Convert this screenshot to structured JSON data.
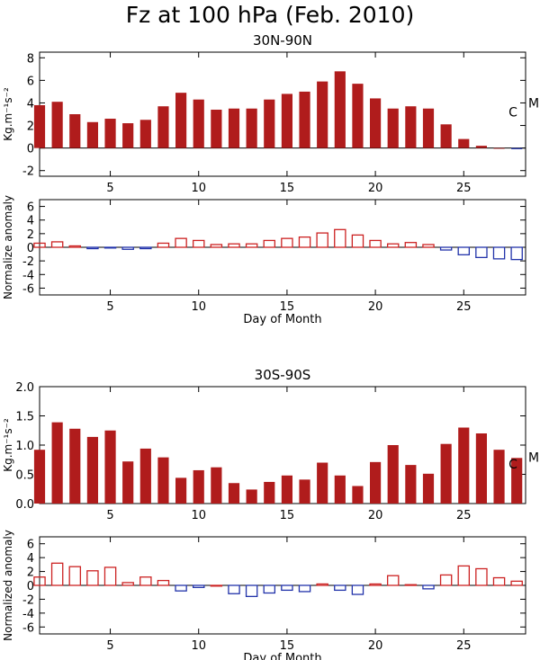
{
  "title": "Fz at 100 hPa (Feb. 2010)",
  "colors": {
    "positive": "#cc2222",
    "negative": "#2233aa",
    "fill": "#b01c1c",
    "axis": "#000000"
  },
  "chart_data": [
    {
      "type": "bar",
      "style": "filled",
      "title": "30N-90N",
      "ylabel": "Kg.m⁻¹s⁻²",
      "xlim": [
        1,
        28.5
      ],
      "ylim": [
        -2.5,
        8.5
      ],
      "xticks": [
        5,
        10,
        15,
        20,
        25
      ],
      "yticks": [
        -2,
        0,
        2,
        4,
        6,
        8
      ],
      "x": [
        1,
        2,
        3,
        4,
        5,
        6,
        7,
        8,
        9,
        10,
        11,
        12,
        13,
        14,
        15,
        16,
        17,
        18,
        19,
        20,
        21,
        22,
        23,
        24,
        25,
        26,
        27,
        28
      ],
      "values": [
        3.8,
        4.1,
        3.0,
        2.3,
        2.6,
        2.2,
        2.5,
        3.7,
        4.9,
        4.3,
        3.4,
        3.5,
        3.5,
        4.3,
        4.8,
        5.0,
        5.9,
        6.8,
        5.7,
        4.4,
        3.5,
        3.7,
        3.5,
        2.1,
        0.8,
        0.2,
        0.0,
        -0.1
      ],
      "markers": [
        {
          "text": "C",
          "value": 3.2
        },
        {
          "text": "M",
          "value": 4.0
        }
      ]
    },
    {
      "type": "bar",
      "style": "outline",
      "title": "",
      "ylabel": "Normalize anomaly",
      "xlabel": "Day of Month",
      "xlim": [
        1,
        28.5
      ],
      "ylim": [
        -7,
        7
      ],
      "xticks": [
        5,
        10,
        15,
        20,
        25
      ],
      "yticks": [
        -6,
        -4,
        -2,
        0,
        2,
        4,
        6
      ],
      "x": [
        1,
        2,
        3,
        4,
        5,
        6,
        7,
        8,
        9,
        10,
        11,
        12,
        13,
        14,
        15,
        16,
        17,
        18,
        19,
        20,
        21,
        22,
        23,
        24,
        25,
        26,
        27,
        28
      ],
      "values": [
        0.6,
        0.8,
        0.2,
        -0.2,
        -0.1,
        -0.3,
        -0.2,
        0.6,
        1.3,
        1.0,
        0.4,
        0.5,
        0.5,
        1.0,
        1.3,
        1.5,
        2.1,
        2.6,
        1.8,
        1.0,
        0.5,
        0.7,
        0.4,
        -0.4,
        -1.1,
        -1.5,
        -1.7,
        -1.8
      ]
    },
    {
      "type": "bar",
      "style": "filled",
      "title": "30S-90S",
      "ylabel": "Kg.m⁻¹s⁻²",
      "xlim": [
        1,
        28.5
      ],
      "ylim": [
        0,
        2.0
      ],
      "xticks": [
        5,
        10,
        15,
        20,
        25
      ],
      "yticks": [
        0.0,
        0.5,
        1.0,
        1.5,
        2.0
      ],
      "yticklabels": [
        "0.0",
        "0.5",
        "1.0",
        "1.5",
        "2.0"
      ],
      "x": [
        1,
        2,
        3,
        4,
        5,
        6,
        7,
        8,
        9,
        10,
        11,
        12,
        13,
        14,
        15,
        16,
        17,
        18,
        19,
        20,
        21,
        22,
        23,
        24,
        25,
        26,
        27,
        28
      ],
      "values": [
        0.92,
        1.39,
        1.28,
        1.14,
        1.25,
        0.72,
        0.94,
        0.79,
        0.44,
        0.57,
        0.62,
        0.35,
        0.24,
        0.37,
        0.48,
        0.41,
        0.7,
        0.48,
        0.3,
        0.71,
        1.0,
        0.66,
        0.51,
        1.02,
        1.3,
        1.2,
        0.92,
        0.78
      ],
      "markers": [
        {
          "text": "C",
          "value": 0.68
        },
        {
          "text": "M",
          "value": 0.79
        }
      ]
    },
    {
      "type": "bar",
      "style": "outline",
      "title": "",
      "ylabel": "Normalized anomaly",
      "xlabel": "Day of Month",
      "xlim": [
        1,
        28.5
      ],
      "ylim": [
        -7,
        7
      ],
      "xticks": [
        5,
        10,
        15,
        20,
        25
      ],
      "yticks": [
        -6,
        -4,
        -2,
        0,
        2,
        4,
        6
      ],
      "x": [
        1,
        2,
        3,
        4,
        5,
        6,
        7,
        8,
        9,
        10,
        11,
        12,
        13,
        14,
        15,
        16,
        17,
        18,
        19,
        20,
        21,
        22,
        23,
        24,
        25,
        26,
        27,
        28
      ],
      "values": [
        1.2,
        3.2,
        2.7,
        2.1,
        2.6,
        0.4,
        1.2,
        0.7,
        -0.8,
        -0.3,
        0.0,
        -1.2,
        -1.6,
        -1.1,
        -0.7,
        -0.9,
        0.2,
        -0.7,
        -1.3,
        0.2,
        1.4,
        0.1,
        -0.5,
        1.5,
        2.8,
        2.4,
        1.1,
        0.6
      ]
    }
  ]
}
